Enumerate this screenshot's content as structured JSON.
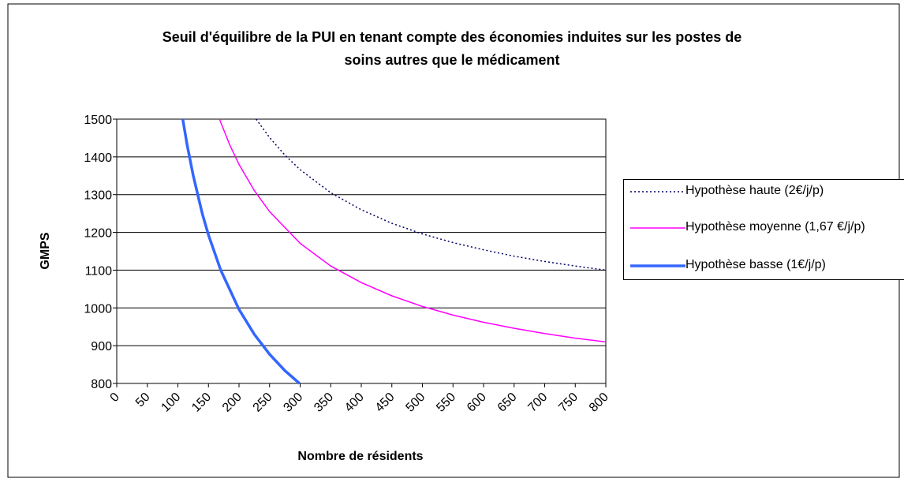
{
  "chart_data": {
    "type": "line",
    "title": "Seuil d'équilibre de la PUI en tenant compte des économies induites sur les postes de soins autres que le médicament",
    "xlabel": "Nombre de résidents",
    "ylabel": "GMPS",
    "xlim": [
      0,
      800
    ],
    "xticks": [
      0,
      50,
      100,
      150,
      200,
      250,
      300,
      350,
      400,
      450,
      500,
      550,
      600,
      650,
      700,
      750,
      800
    ],
    "ylim": [
      800,
      1500
    ],
    "yticks": [
      800,
      900,
      1000,
      1100,
      1200,
      1300,
      1400,
      1500
    ],
    "grid": true,
    "legend": "right",
    "series": [
      {
        "name": "Hypothèse haute (2€/j/p)",
        "color": "#000066",
        "style": "dotted",
        "x": [
          228,
          250,
          275,
          300,
          350,
          400,
          450,
          500,
          550,
          600,
          650,
          700,
          750,
          800
        ],
        "values": [
          1500,
          1451,
          1405,
          1366,
          1305,
          1260,
          1224,
          1196,
          1173,
          1154,
          1137,
          1123,
          1111,
          1100
        ]
      },
      {
        "name": "Hypothèse moyenne (1,67 €/j/p)",
        "color": "#ff00ff",
        "style": "solid",
        "x": [
          168,
          185,
          200,
          225,
          250,
          300,
          350,
          400,
          450,
          500,
          550,
          600,
          650,
          700,
          750,
          800
        ],
        "values": [
          1500,
          1431,
          1380,
          1311,
          1255,
          1171,
          1111,
          1067,
          1032,
          1004,
          981,
          962,
          946,
          932,
          920,
          910
        ]
      },
      {
        "name": "Hypothèse basse (1€/j/p)",
        "color": "#3366ff",
        "style": "thick",
        "x": [
          108,
          115,
          125,
          140,
          150,
          170,
          200,
          225,
          250,
          275,
          299
        ],
        "values": [
          1500,
          1433,
          1351,
          1249,
          1193,
          1100,
          996,
          930,
          877,
          834,
          800
        ]
      }
    ]
  }
}
